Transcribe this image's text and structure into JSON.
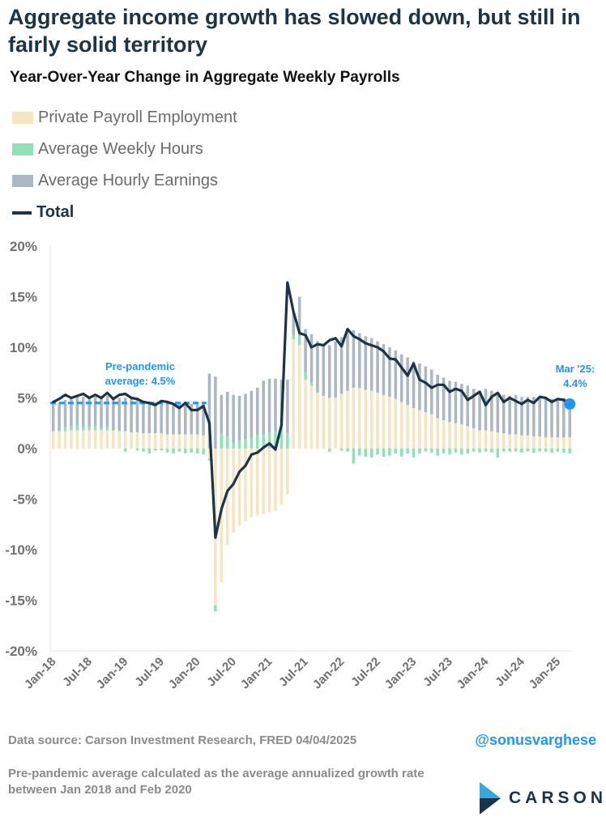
{
  "title": "Aggregate income growth has slowed down, but still in fairly solid territory",
  "subtitle": "Year-Over-Year Change in Aggregate Weekly Payrolls",
  "legend": [
    {
      "label": "Private Payroll Employment",
      "color": "#f5e5c0",
      "kind": "bar"
    },
    {
      "label": "Average Weekly Hours",
      "color": "#8de2b6",
      "kind": "bar"
    },
    {
      "label": "Average Hourly Earnings",
      "color": "#abb7c2",
      "kind": "bar"
    },
    {
      "label": "Total",
      "color": "#1c3448",
      "kind": "line"
    }
  ],
  "source": "Data source: Carson Investment Research, FRED    04/04/2025",
  "handle": "@sonusvarghese",
  "note": "Pre-pandemic average calculated as the average annualized growth rate between Jan 2018 and Feb 2020",
  "logo": {
    "text": "CARSON",
    "colors": [
      "#3aa5dc",
      "#1c3448"
    ]
  },
  "chart_data": {
    "type": "bar",
    "stacked": true,
    "ylim": [
      -20,
      20
    ],
    "yticks": [
      "20%",
      "15%",
      "10%",
      "5%",
      "0%",
      "-5%",
      "-10%",
      "-15%",
      "-20%"
    ],
    "ytick_values": [
      20,
      15,
      10,
      5,
      0,
      -5,
      -10,
      -15,
      -20
    ],
    "xticks": [
      "Jan-18",
      "Jul-18",
      "Jan-19",
      "Jul-19",
      "Jan-20",
      "Jul-20",
      "Jan-21",
      "Jul-21",
      "Jan-22",
      "Jul-22",
      "Jan-23",
      "Jul-23",
      "Jan-24",
      "Jul-24",
      "Jan-25"
    ],
    "xtick_index": [
      0,
      6,
      12,
      18,
      24,
      30,
      36,
      42,
      48,
      54,
      60,
      66,
      72,
      78,
      84
    ],
    "n_months": 87,
    "start": "Jan-18",
    "end": "Mar-25",
    "series": [
      {
        "name": "Private Payroll Employment",
        "values": [
          1.7,
          1.7,
          1.7,
          1.8,
          1.8,
          1.8,
          1.8,
          1.8,
          1.8,
          1.8,
          1.8,
          1.7,
          1.7,
          1.6,
          1.6,
          1.5,
          1.5,
          1.5,
          1.5,
          1.4,
          1.4,
          1.4,
          1.4,
          1.4,
          1.4,
          1.3,
          -1.0,
          -15.5,
          -13.2,
          -9.5,
          -8.3,
          -7.6,
          -7.2,
          -6.8,
          -6.6,
          -6.5,
          -6.3,
          -6.2,
          -5.5,
          -4.5,
          10.8,
          10.2,
          6.8,
          6.2,
          5.5,
          5.2,
          5.0,
          5.0,
          5.4,
          5.7,
          6.0,
          6.0,
          5.8,
          5.7,
          5.5,
          5.3,
          5.1,
          4.9,
          4.6,
          4.3,
          4.0,
          3.8,
          3.6,
          3.4,
          3.0,
          2.8,
          2.6,
          2.5,
          2.4,
          2.2,
          2.0,
          1.8,
          1.8,
          1.7,
          1.6,
          1.5,
          1.4,
          1.4,
          1.3,
          1.3,
          1.2,
          1.2,
          1.1,
          1.1,
          1.1,
          1.1,
          1.1
        ]
      },
      {
        "name": "Average Weekly Hours",
        "values": [
          0.0,
          0.1,
          0.4,
          0.4,
          0.5,
          0.3,
          0.4,
          0.4,
          0.2,
          0.3,
          0.0,
          0.1,
          -0.3,
          0.0,
          -0.2,
          -0.3,
          -0.5,
          -0.2,
          -0.2,
          -0.4,
          -0.5,
          -0.3,
          -0.5,
          -0.4,
          -0.5,
          -0.6,
          -0.2,
          -0.6,
          1.5,
          1.2,
          0.6,
          0.8,
          0.9,
          1.1,
          1.3,
          1.4,
          1.6,
          1.7,
          2.0,
          1.5,
          0.4,
          0.9,
          0.7,
          0.3,
          0.1,
          0.0,
          -0.3,
          0.1,
          -0.2,
          -0.3,
          -1.5,
          -0.7,
          -0.8,
          -0.9,
          -0.6,
          -0.8,
          -0.7,
          -0.5,
          -0.8,
          -0.5,
          -0.9,
          -0.5,
          -0.3,
          -0.4,
          -0.7,
          -0.5,
          -0.6,
          -0.4,
          -0.6,
          -0.5,
          -0.3,
          -0.4,
          -0.3,
          -0.4,
          -0.9,
          -0.3,
          -0.3,
          -0.3,
          -0.4,
          -0.3,
          -0.4,
          -0.3,
          -0.3,
          -0.4,
          -0.3,
          -0.4,
          -0.5
        ]
      },
      {
        "name": "Average Hourly Earnings",
        "values": [
          2.7,
          2.7,
          2.7,
          2.8,
          2.9,
          3.0,
          2.9,
          2.9,
          3.1,
          3.1,
          3.2,
          3.2,
          3.3,
          3.3,
          3.2,
          3.1,
          3.0,
          3.1,
          3.0,
          3.1,
          3.0,
          3.0,
          3.1,
          3.0,
          3.0,
          3.1,
          7.4,
          7.1,
          3.8,
          4.4,
          4.7,
          4.4,
          4.5,
          4.6,
          4.7,
          5.3,
          5.3,
          5.2,
          4.8,
          5.3,
          2.3,
          3.9,
          4.3,
          4.8,
          5.0,
          5.1,
          5.2,
          5.5,
          5.6,
          5.8,
          5.7,
          5.4,
          5.3,
          5.2,
          5.1,
          5.0,
          4.9,
          4.8,
          4.7,
          4.7,
          4.6,
          4.6,
          4.5,
          4.4,
          4.3,
          4.2,
          4.1,
          4.1,
          4.0,
          4.0,
          3.9,
          3.9,
          4.1,
          4.0,
          3.9,
          3.8,
          3.8,
          3.9,
          3.8,
          3.8,
          3.9,
          3.8,
          3.9,
          3.8,
          3.8,
          3.9,
          3.8
        ]
      },
      {
        "name": "Total",
        "values": [
          4.6,
          4.9,
          5.3,
          5.0,
          5.2,
          5.4,
          5.0,
          5.3,
          5.0,
          5.5,
          4.9,
          5.3,
          5.4,
          5.0,
          4.9,
          4.6,
          4.5,
          4.3,
          4.7,
          4.6,
          4.4,
          4.0,
          4.5,
          3.8,
          3.8,
          4.2,
          2.5,
          -8.8,
          -6.0,
          -4.2,
          -3.5,
          -2.3,
          -1.7,
          -0.6,
          -0.4,
          0.1,
          0.5,
          -0.1,
          2.3,
          16.4,
          13.5,
          11.4,
          11.2,
          10.0,
          10.3,
          10.2,
          10.7,
          10.9,
          10.1,
          11.8,
          11.1,
          10.8,
          10.4,
          10.2,
          10.0,
          9.6,
          8.9,
          8.8,
          8.0,
          7.2,
          8.4,
          6.8,
          6.5,
          6.0,
          6.3,
          6.3,
          5.6,
          5.9,
          5.7,
          4.8,
          5.2,
          5.6,
          4.3,
          5.1,
          5.5,
          4.6,
          5.0,
          4.7,
          4.4,
          4.8,
          4.5,
          5.1,
          5.0,
          4.6,
          4.9,
          4.8,
          4.4
        ]
      }
    ],
    "reference_line": {
      "label_line1": "Pre-pandemic",
      "label_line2": "average: 4.5%",
      "value": 4.5,
      "start_index": 0,
      "end_index": 25,
      "color": "#2196f3"
    },
    "end_annotation": {
      "label_line1": "Mar '25:",
      "label_line2": "4.4%",
      "value": 4.4,
      "color": "#2196f3"
    },
    "grid": false
  }
}
